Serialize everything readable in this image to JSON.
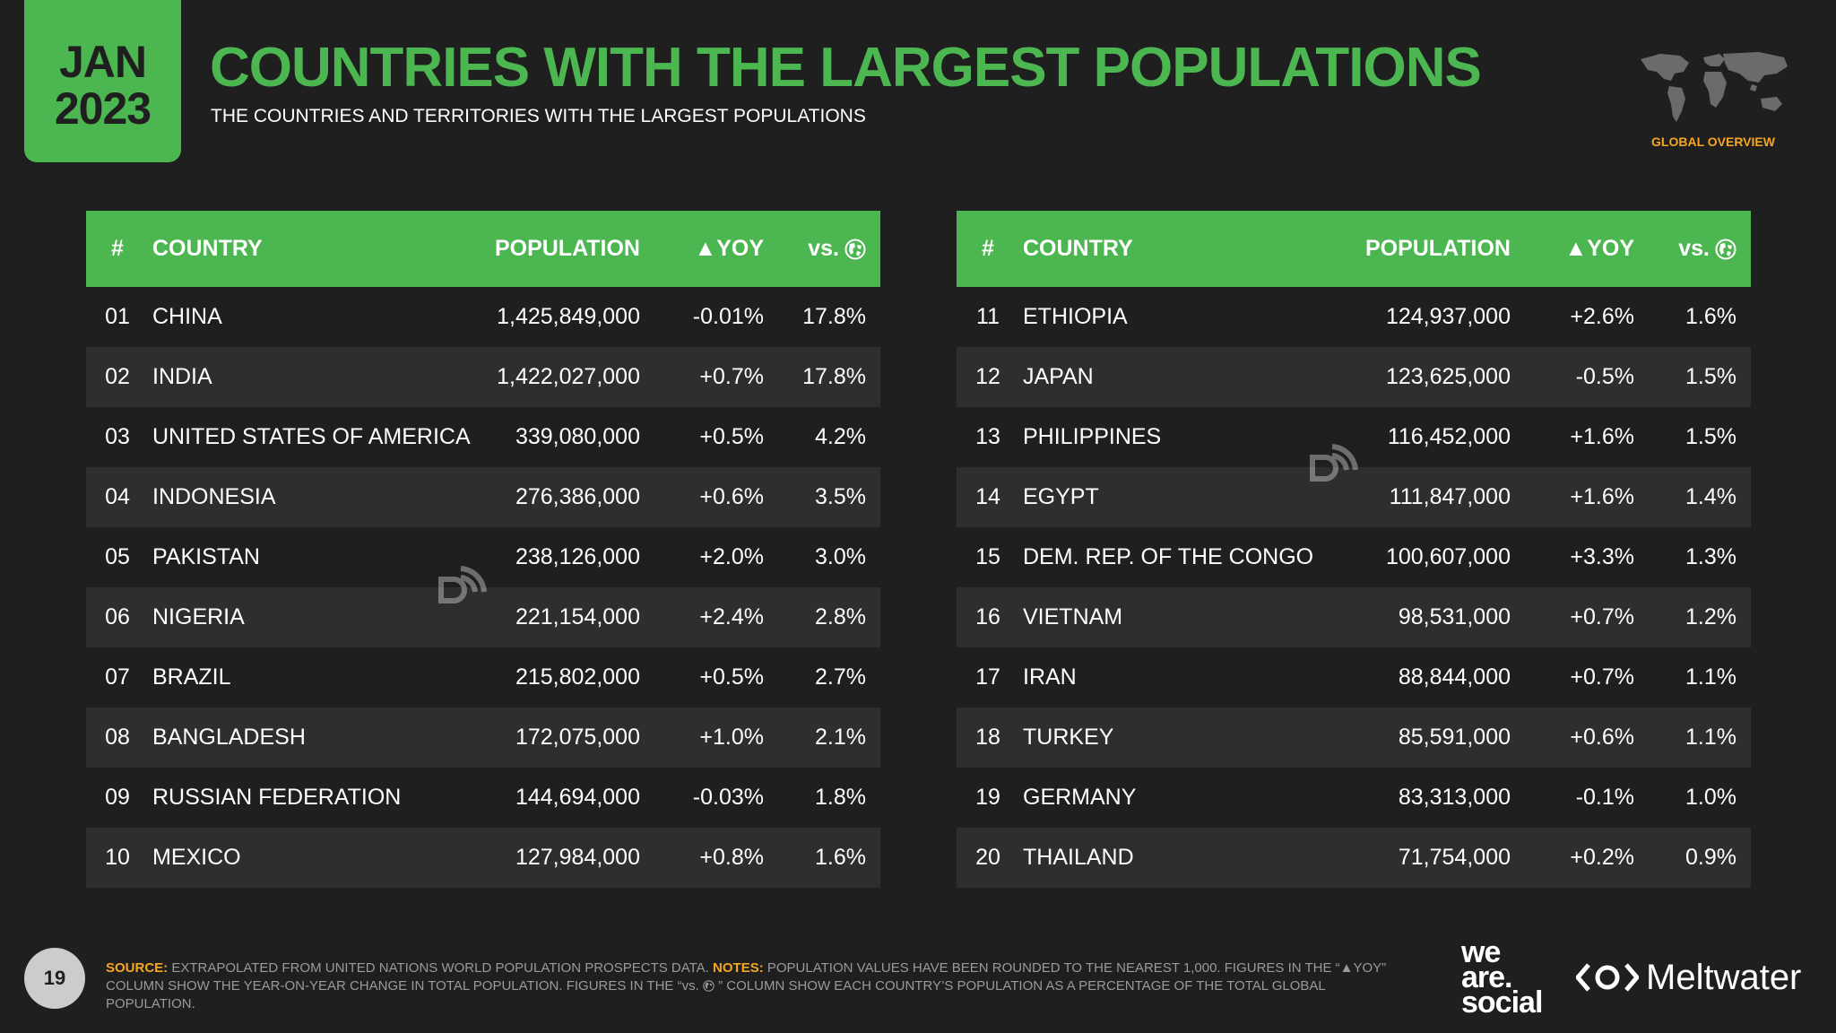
{
  "header": {
    "month": "JAN",
    "year": "2023",
    "title": "COUNTRIES WITH THE LARGEST POPULATIONS",
    "subtitle": "THE COUNTRIES AND TERRITORIES WITH THE LARGEST POPULATIONS",
    "section": "GLOBAL OVERVIEW"
  },
  "columns": {
    "num": "#",
    "country": "COUNTRY",
    "population": "POPULATION",
    "yoy": "▲YOY",
    "vs": "vs."
  },
  "table_left": [
    {
      "num": "01",
      "country": "CHINA",
      "population": "1,425,849,000",
      "yoy": "-0.01%",
      "vs": "17.8%"
    },
    {
      "num": "02",
      "country": "INDIA",
      "population": "1,422,027,000",
      "yoy": "+0.7%",
      "vs": "17.8%"
    },
    {
      "num": "03",
      "country": "UNITED STATES OF AMERICA",
      "population": "339,080,000",
      "yoy": "+0.5%",
      "vs": "4.2%"
    },
    {
      "num": "04",
      "country": "INDONESIA",
      "population": "276,386,000",
      "yoy": "+0.6%",
      "vs": "3.5%"
    },
    {
      "num": "05",
      "country": "PAKISTAN",
      "population": "238,126,000",
      "yoy": "+2.0%",
      "vs": "3.0%"
    },
    {
      "num": "06",
      "country": "NIGERIA",
      "population": "221,154,000",
      "yoy": "+2.4%",
      "vs": "2.8%"
    },
    {
      "num": "07",
      "country": "BRAZIL",
      "population": "215,802,000",
      "yoy": "+0.5%",
      "vs": "2.7%"
    },
    {
      "num": "08",
      "country": "BANGLADESH",
      "population": "172,075,000",
      "yoy": "+1.0%",
      "vs": "2.1%"
    },
    {
      "num": "09",
      "country": "RUSSIAN FEDERATION",
      "population": "144,694,000",
      "yoy": "-0.03%",
      "vs": "1.8%"
    },
    {
      "num": "10",
      "country": "MEXICO",
      "population": "127,984,000",
      "yoy": "+0.8%",
      "vs": "1.6%"
    }
  ],
  "table_right": [
    {
      "num": "11",
      "country": "ETHIOPIA",
      "population": "124,937,000",
      "yoy": "+2.6%",
      "vs": "1.6%"
    },
    {
      "num": "12",
      "country": "JAPAN",
      "population": "123,625,000",
      "yoy": "-0.5%",
      "vs": "1.5%"
    },
    {
      "num": "13",
      "country": "PHILIPPINES",
      "population": "116,452,000",
      "yoy": "+1.6%",
      "vs": "1.5%"
    },
    {
      "num": "14",
      "country": "EGYPT",
      "population": "111,847,000",
      "yoy": "+1.6%",
      "vs": "1.4%"
    },
    {
      "num": "15",
      "country": "DEM. REP. OF THE CONGO",
      "population": "100,607,000",
      "yoy": "+3.3%",
      "vs": "1.3%"
    },
    {
      "num": "16",
      "country": "VIETNAM",
      "population": "98,531,000",
      "yoy": "+0.7%",
      "vs": "1.2%"
    },
    {
      "num": "17",
      "country": "IRAN",
      "population": "88,844,000",
      "yoy": "+0.7%",
      "vs": "1.1%"
    },
    {
      "num": "18",
      "country": "TURKEY",
      "population": "85,591,000",
      "yoy": "+0.6%",
      "vs": "1.1%"
    },
    {
      "num": "19",
      "country": "GERMANY",
      "population": "83,313,000",
      "yoy": "-0.1%",
      "vs": "1.0%"
    },
    {
      "num": "20",
      "country": "THAILAND",
      "population": "71,754,000",
      "yoy": "+0.2%",
      "vs": "0.9%"
    }
  ],
  "footer": {
    "page": "19",
    "source_label": "SOURCE:",
    "source_text": "EXTRAPOLATED FROM UNITED NATIONS WORLD POPULATION PROSPECTS DATA.",
    "notes_label": "NOTES:",
    "notes_text_1": "POPULATION VALUES HAVE BEEN ROUNDED TO THE NEAREST 1,000. FIGURES IN THE “▲YOY” COLUMN SHOW THE YEAR-ON-YEAR CHANGE IN TOTAL POPULATION. FIGURES IN THE “vs.",
    "notes_text_2": "” COLUMN SHOW EACH COUNTRY’S POPULATION AS A PERCENTAGE OF THE TOTAL GLOBAL POPULATION.",
    "brand_1_line1": "we",
    "brand_1_line2": "are.",
    "brand_1_line3": "social",
    "brand_2": "Meltwater"
  },
  "colors": {
    "accent_green": "#4cb651",
    "accent_orange": "#f5a623",
    "background": "#1f1f1f",
    "row_alt": "#2e2e2e"
  }
}
